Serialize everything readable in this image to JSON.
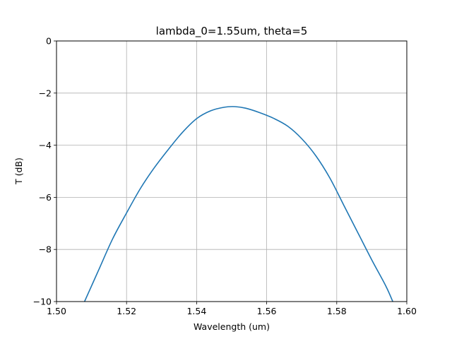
{
  "chart_data": {
    "type": "line",
    "title": "lambda_0=1.55um, theta=5",
    "xlabel": "Wavelength (um)",
    "ylabel": "T (dB)",
    "xlim": [
      1.5,
      1.6
    ],
    "ylim": [
      -10,
      0
    ],
    "xticks": [
      "1.50",
      "1.52",
      "1.54",
      "1.56",
      "1.58",
      "1.60"
    ],
    "yticks": [
      "0",
      "−2",
      "−4",
      "−6",
      "−8",
      "−10"
    ],
    "grid": true,
    "line_color": "#1f77b4",
    "series": [
      {
        "x": [
          1.508,
          1.512,
          1.516,
          1.52,
          1.524,
          1.528,
          1.532,
          1.536,
          1.54,
          1.544,
          1.548,
          1.551,
          1.554,
          1.558,
          1.562,
          1.566,
          1.57,
          1.574,
          1.578,
          1.582,
          1.586,
          1.59,
          1.594,
          1.596
        ],
        "y": [
          -10.0,
          -8.8,
          -7.6,
          -6.6,
          -5.65,
          -4.85,
          -4.15,
          -3.5,
          -2.98,
          -2.68,
          -2.54,
          -2.52,
          -2.58,
          -2.75,
          -2.97,
          -3.27,
          -3.75,
          -4.4,
          -5.25,
          -6.3,
          -7.35,
          -8.4,
          -9.4,
          -10.0
        ]
      }
    ]
  }
}
